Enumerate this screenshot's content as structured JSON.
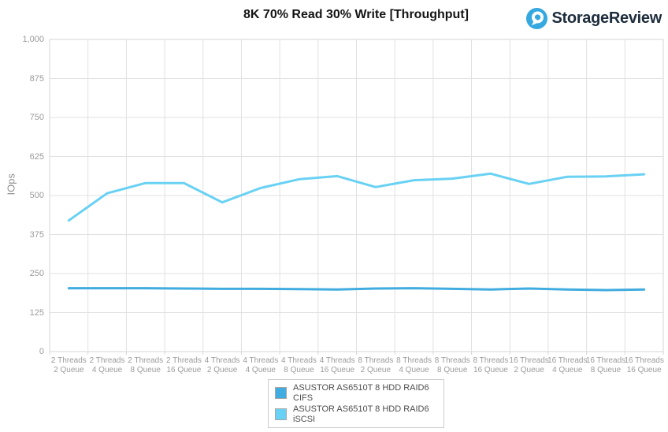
{
  "header": {
    "title": "8K 70% Read 30% Write [Throughput]",
    "logo_text": "StorageReview"
  },
  "colors": {
    "logo_blue": "#35A8E0",
    "logo_text": "#1D2C3B",
    "grid": "#E1E1E1",
    "axis_line": "#D6D6D6",
    "axis_text": "#9B9B9B",
    "legend_border": "#CCCCCC",
    "legend_text": "#4D4D4D",
    "swatch_border": "#A6A6A6"
  },
  "chart_data": {
    "type": "line",
    "title": "8K 70% Read 30% Write [Throughput]",
    "xlabel": "",
    "ylabel": "IOps",
    "ylim": [
      0,
      1000
    ],
    "ytick_labels": [
      "0",
      "125",
      "250",
      "375",
      "500",
      "625",
      "750",
      "875",
      "1,000"
    ],
    "grid": true,
    "legend_position": "bottom",
    "categories": [
      [
        "2 Threads",
        "2 Queue"
      ],
      [
        "2 Threads",
        "4 Queue"
      ],
      [
        "2 Threads",
        "8 Queue"
      ],
      [
        "2 Threads",
        "16 Queue"
      ],
      [
        "4 Threads",
        "2 Queue"
      ],
      [
        "4 Threads",
        "4 Queue"
      ],
      [
        "4 Threads",
        "8 Queue"
      ],
      [
        "4 Threads",
        "16 Queue"
      ],
      [
        "8 Threads",
        "2 Queue"
      ],
      [
        "8 Threads",
        "4 Queue"
      ],
      [
        "8 Threads",
        "8 Queue"
      ],
      [
        "8 Threads",
        "16 Queue"
      ],
      [
        "16 Threads",
        "2 Queue"
      ],
      [
        "16 Threads",
        "4 Queue"
      ],
      [
        "16 Threads",
        "8 Queue"
      ],
      [
        "16 Threads",
        "16 Queue"
      ]
    ],
    "series": [
      {
        "name": "ASUSTOR AS6510T 8 HDD RAID6 CIFS",
        "color": "#41ACDF",
        "values": [
          203,
          203,
          203,
          202,
          201,
          201,
          200,
          199,
          202,
          203,
          201,
          199,
          202,
          199,
          197,
          199
        ]
      },
      {
        "name": "ASUSTOR AS6510T 8 HDD RAID6 iSCSI",
        "color": "#69D1F3",
        "values": [
          420,
          507,
          540,
          540,
          478,
          524,
          552,
          562,
          527,
          549,
          554,
          570,
          537,
          560,
          561,
          568
        ]
      }
    ]
  }
}
